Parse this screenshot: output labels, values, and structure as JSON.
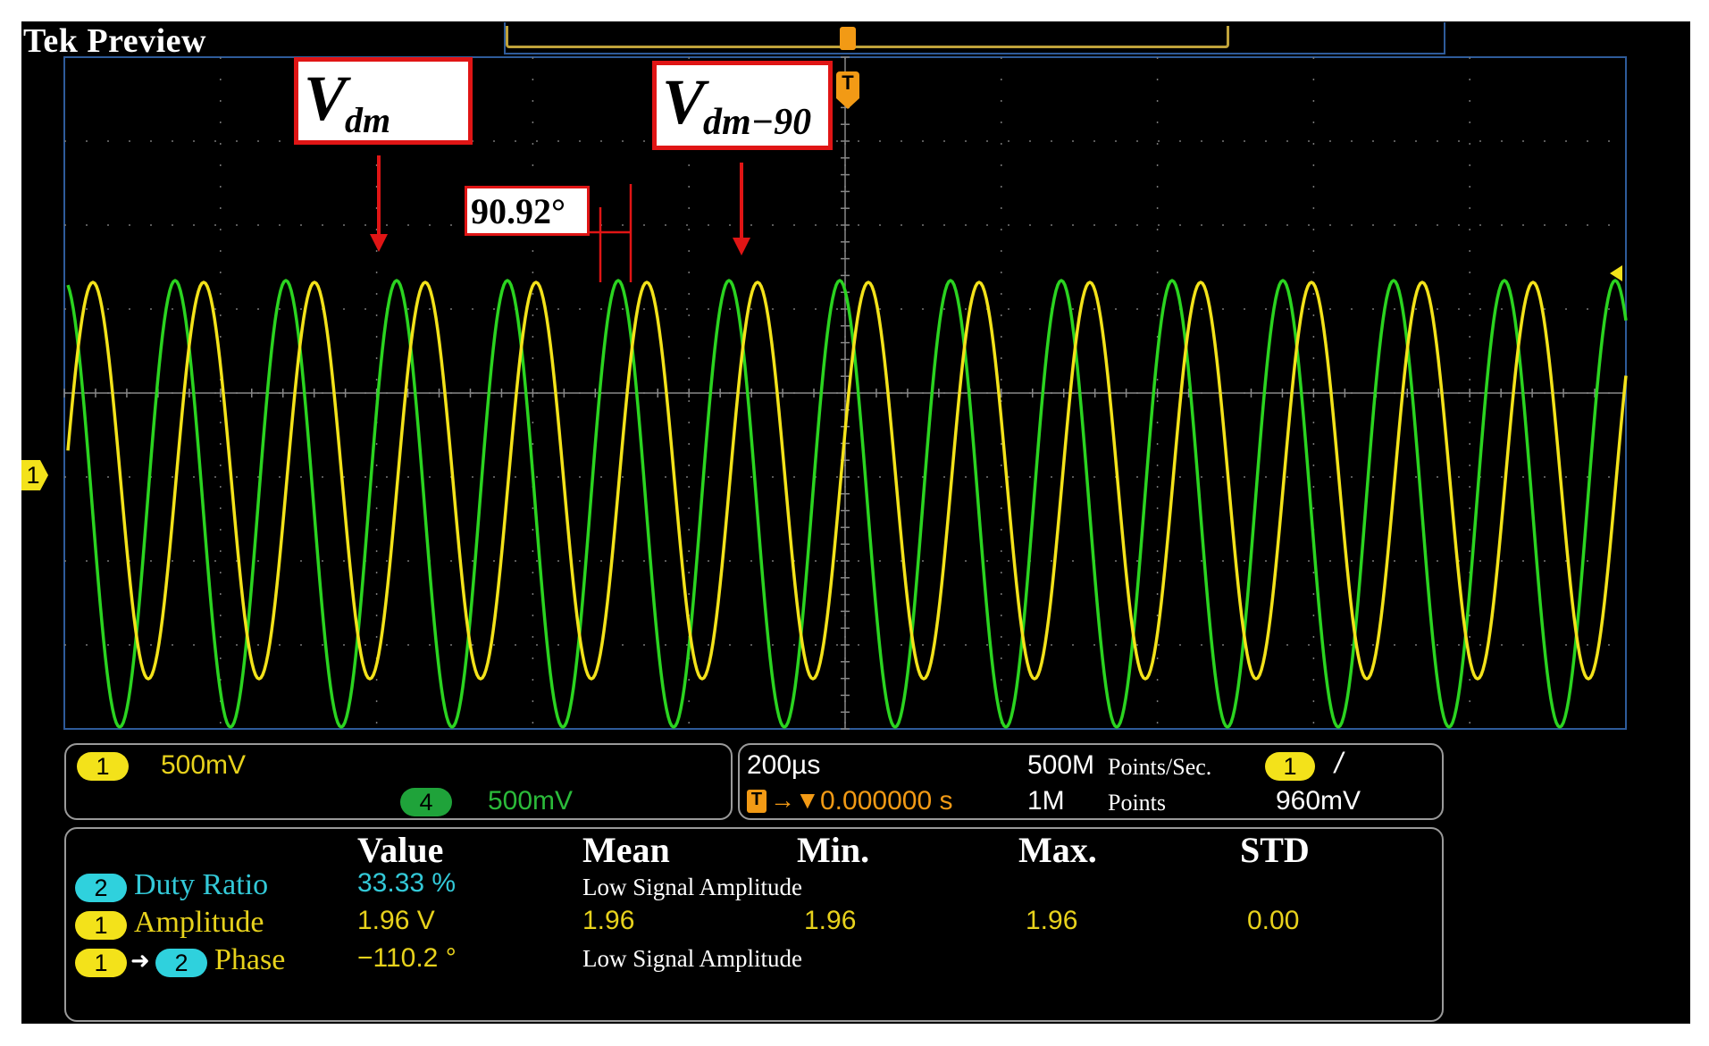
{
  "title": "Tek Preview",
  "annotations": {
    "vdm_main": "V",
    "vdm_sub": "dm",
    "vdm90_main": "V",
    "vdm90_sub": "dm−90",
    "phase_angle": "90.92°"
  },
  "channels": [
    {
      "badge": "1",
      "scale": "500mV",
      "color": "#f3e21a"
    },
    {
      "badge": "4",
      "scale": "500mV",
      "color": "#1fa33a"
    }
  ],
  "ground_marker": "1",
  "trigger_marker": "T",
  "timebase": {
    "time_div": "200µs",
    "trigger_delay": "0.000000 s",
    "trigger_icon": "T",
    "sample_rate": "500M",
    "sample_rate_unit": "Points/Sec.",
    "record_length": "1M",
    "record_length_unit": "Points",
    "trigger_channel": "1",
    "trigger_slope": "/",
    "trigger_level": "960mV"
  },
  "measurements": {
    "headers": [
      "Value",
      "Mean",
      "Min.",
      "Max.",
      "STD"
    ],
    "rows": [
      {
        "badge": "2",
        "badge2": "",
        "name": "Duty Ratio",
        "value": "33.33 %",
        "mean": "Low Signal Amplitude",
        "min": "",
        "max": "",
        "std": ""
      },
      {
        "badge": "1",
        "badge2": "",
        "name": "Amplitude",
        "value": "1.96 V",
        "mean": "1.96",
        "min": "1.96",
        "max": "1.96",
        "std": "0.00"
      },
      {
        "badge": "1",
        "badge2": "2",
        "name": "Phase",
        "value": "−110.2 °",
        "mean": "Low Signal Amplitude",
        "min": "",
        "max": "",
        "std": ""
      }
    ]
  },
  "colors": {
    "ch1": "#f3e21a",
    "ch4": "#2bd420",
    "ch2": "#2fd1dd",
    "annotation": "#e01515",
    "trigger": "#f29a15",
    "grid": "#777777"
  }
}
